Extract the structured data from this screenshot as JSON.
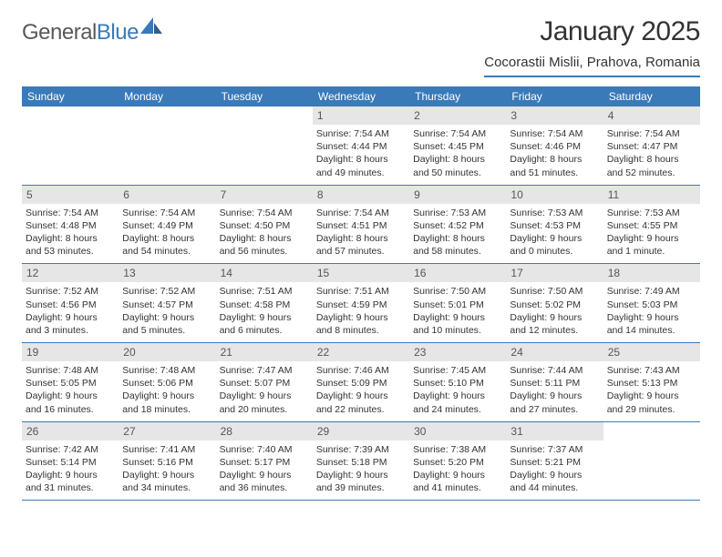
{
  "brand": {
    "text1": "General",
    "text2": "Blue"
  },
  "title": "January 2025",
  "location": "Cocorastii Mislii, Prahova, Romania",
  "colors": {
    "accent": "#3a7ab8",
    "header_text": "#ffffff",
    "daynum_bg": "#e6e6e6",
    "body_text": "#333333",
    "logo_gray": "#595959"
  },
  "fonts": {
    "title_size": 30,
    "location_size": 15,
    "dayhdr_size": 12,
    "cell_size": 10.5
  },
  "day_headers": [
    "Sunday",
    "Monday",
    "Tuesday",
    "Wednesday",
    "Thursday",
    "Friday",
    "Saturday"
  ],
  "weeks": [
    [
      {
        "empty": true
      },
      {
        "empty": true
      },
      {
        "empty": true
      },
      {
        "n": "1",
        "sr": "Sunrise: 7:54 AM",
        "ss": "Sunset: 4:44 PM",
        "d1": "Daylight: 8 hours",
        "d2": "and 49 minutes."
      },
      {
        "n": "2",
        "sr": "Sunrise: 7:54 AM",
        "ss": "Sunset: 4:45 PM",
        "d1": "Daylight: 8 hours",
        "d2": "and 50 minutes."
      },
      {
        "n": "3",
        "sr": "Sunrise: 7:54 AM",
        "ss": "Sunset: 4:46 PM",
        "d1": "Daylight: 8 hours",
        "d2": "and 51 minutes."
      },
      {
        "n": "4",
        "sr": "Sunrise: 7:54 AM",
        "ss": "Sunset: 4:47 PM",
        "d1": "Daylight: 8 hours",
        "d2": "and 52 minutes."
      }
    ],
    [
      {
        "n": "5",
        "sr": "Sunrise: 7:54 AM",
        "ss": "Sunset: 4:48 PM",
        "d1": "Daylight: 8 hours",
        "d2": "and 53 minutes."
      },
      {
        "n": "6",
        "sr": "Sunrise: 7:54 AM",
        "ss": "Sunset: 4:49 PM",
        "d1": "Daylight: 8 hours",
        "d2": "and 54 minutes."
      },
      {
        "n": "7",
        "sr": "Sunrise: 7:54 AM",
        "ss": "Sunset: 4:50 PM",
        "d1": "Daylight: 8 hours",
        "d2": "and 56 minutes."
      },
      {
        "n": "8",
        "sr": "Sunrise: 7:54 AM",
        "ss": "Sunset: 4:51 PM",
        "d1": "Daylight: 8 hours",
        "d2": "and 57 minutes."
      },
      {
        "n": "9",
        "sr": "Sunrise: 7:53 AM",
        "ss": "Sunset: 4:52 PM",
        "d1": "Daylight: 8 hours",
        "d2": "and 58 minutes."
      },
      {
        "n": "10",
        "sr": "Sunrise: 7:53 AM",
        "ss": "Sunset: 4:53 PM",
        "d1": "Daylight: 9 hours",
        "d2": "and 0 minutes."
      },
      {
        "n": "11",
        "sr": "Sunrise: 7:53 AM",
        "ss": "Sunset: 4:55 PM",
        "d1": "Daylight: 9 hours",
        "d2": "and 1 minute."
      }
    ],
    [
      {
        "n": "12",
        "sr": "Sunrise: 7:52 AM",
        "ss": "Sunset: 4:56 PM",
        "d1": "Daylight: 9 hours",
        "d2": "and 3 minutes."
      },
      {
        "n": "13",
        "sr": "Sunrise: 7:52 AM",
        "ss": "Sunset: 4:57 PM",
        "d1": "Daylight: 9 hours",
        "d2": "and 5 minutes."
      },
      {
        "n": "14",
        "sr": "Sunrise: 7:51 AM",
        "ss": "Sunset: 4:58 PM",
        "d1": "Daylight: 9 hours",
        "d2": "and 6 minutes."
      },
      {
        "n": "15",
        "sr": "Sunrise: 7:51 AM",
        "ss": "Sunset: 4:59 PM",
        "d1": "Daylight: 9 hours",
        "d2": "and 8 minutes."
      },
      {
        "n": "16",
        "sr": "Sunrise: 7:50 AM",
        "ss": "Sunset: 5:01 PM",
        "d1": "Daylight: 9 hours",
        "d2": "and 10 minutes."
      },
      {
        "n": "17",
        "sr": "Sunrise: 7:50 AM",
        "ss": "Sunset: 5:02 PM",
        "d1": "Daylight: 9 hours",
        "d2": "and 12 minutes."
      },
      {
        "n": "18",
        "sr": "Sunrise: 7:49 AM",
        "ss": "Sunset: 5:03 PM",
        "d1": "Daylight: 9 hours",
        "d2": "and 14 minutes."
      }
    ],
    [
      {
        "n": "19",
        "sr": "Sunrise: 7:48 AM",
        "ss": "Sunset: 5:05 PM",
        "d1": "Daylight: 9 hours",
        "d2": "and 16 minutes."
      },
      {
        "n": "20",
        "sr": "Sunrise: 7:48 AM",
        "ss": "Sunset: 5:06 PM",
        "d1": "Daylight: 9 hours",
        "d2": "and 18 minutes."
      },
      {
        "n": "21",
        "sr": "Sunrise: 7:47 AM",
        "ss": "Sunset: 5:07 PM",
        "d1": "Daylight: 9 hours",
        "d2": "and 20 minutes."
      },
      {
        "n": "22",
        "sr": "Sunrise: 7:46 AM",
        "ss": "Sunset: 5:09 PM",
        "d1": "Daylight: 9 hours",
        "d2": "and 22 minutes."
      },
      {
        "n": "23",
        "sr": "Sunrise: 7:45 AM",
        "ss": "Sunset: 5:10 PM",
        "d1": "Daylight: 9 hours",
        "d2": "and 24 minutes."
      },
      {
        "n": "24",
        "sr": "Sunrise: 7:44 AM",
        "ss": "Sunset: 5:11 PM",
        "d1": "Daylight: 9 hours",
        "d2": "and 27 minutes."
      },
      {
        "n": "25",
        "sr": "Sunrise: 7:43 AM",
        "ss": "Sunset: 5:13 PM",
        "d1": "Daylight: 9 hours",
        "d2": "and 29 minutes."
      }
    ],
    [
      {
        "n": "26",
        "sr": "Sunrise: 7:42 AM",
        "ss": "Sunset: 5:14 PM",
        "d1": "Daylight: 9 hours",
        "d2": "and 31 minutes."
      },
      {
        "n": "27",
        "sr": "Sunrise: 7:41 AM",
        "ss": "Sunset: 5:16 PM",
        "d1": "Daylight: 9 hours",
        "d2": "and 34 minutes."
      },
      {
        "n": "28",
        "sr": "Sunrise: 7:40 AM",
        "ss": "Sunset: 5:17 PM",
        "d1": "Daylight: 9 hours",
        "d2": "and 36 minutes."
      },
      {
        "n": "29",
        "sr": "Sunrise: 7:39 AM",
        "ss": "Sunset: 5:18 PM",
        "d1": "Daylight: 9 hours",
        "d2": "and 39 minutes."
      },
      {
        "n": "30",
        "sr": "Sunrise: 7:38 AM",
        "ss": "Sunset: 5:20 PM",
        "d1": "Daylight: 9 hours",
        "d2": "and 41 minutes."
      },
      {
        "n": "31",
        "sr": "Sunrise: 7:37 AM",
        "ss": "Sunset: 5:21 PM",
        "d1": "Daylight: 9 hours",
        "d2": "and 44 minutes."
      },
      {
        "empty": true
      }
    ]
  ]
}
